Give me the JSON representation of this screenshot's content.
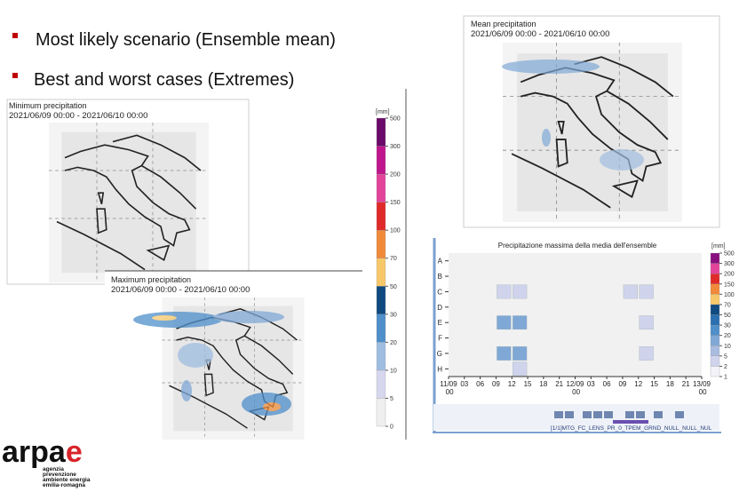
{
  "bullets": [
    "Most likely scenario (Ensemble mean)",
    "Best and worst cases (Extremes)"
  ],
  "panels": {
    "min": {
      "title": "Minimum precipitation",
      "subtitle": "2021/06/09 00:00 - 2021/06/10 00:00"
    },
    "max": {
      "title": "Maximum precipitation",
      "subtitle": "2021/06/09 00:00 - 2021/06/10 00:00"
    },
    "mean": {
      "title": "Mean precipitation",
      "subtitle": "2021/06/09 00:00 - 2021/06/10 00:00"
    }
  },
  "map_colorbar": {
    "unit": "[mm]",
    "ticks": [
      0,
      5,
      10,
      20,
      30,
      50,
      70,
      100,
      150,
      200,
      300,
      500
    ],
    "colors": [
      "#efefef",
      "#d6d6ee",
      "#9fbde0",
      "#4f8fca",
      "#0f4a80",
      "#f7c86a",
      "#f08a3a",
      "#e02a2a",
      "#e2449a",
      "#c0168c",
      "#6a0a6a"
    ]
  },
  "chart_data": {
    "type": "heatmap",
    "title": "Precipitazione massima della media dell'ensemble",
    "x": [
      "11/09 00",
      "03",
      "06",
      "09",
      "12",
      "15",
      "18",
      "21",
      "12/09 00",
      "03",
      "06",
      "09",
      "12",
      "15",
      "18",
      "21",
      "13/09 00"
    ],
    "categories": [
      "A",
      "B",
      "C",
      "D",
      "E",
      "F",
      "G",
      "H"
    ],
    "values": [
      [
        null,
        null,
        null,
        null,
        null,
        null,
        null,
        null,
        null,
        null,
        null,
        null,
        null,
        null,
        null,
        null
      ],
      [
        null,
        null,
        null,
        null,
        null,
        null,
        null,
        null,
        null,
        null,
        null,
        null,
        null,
        null,
        null,
        null
      ],
      [
        null,
        null,
        null,
        3,
        3,
        null,
        null,
        null,
        null,
        null,
        null,
        3,
        3,
        null,
        null,
        null
      ],
      [
        null,
        null,
        null,
        null,
        null,
        null,
        null,
        null,
        null,
        null,
        null,
        null,
        null,
        null,
        null,
        null
      ],
      [
        null,
        null,
        null,
        15,
        15,
        null,
        null,
        null,
        null,
        null,
        null,
        null,
        3,
        null,
        null,
        null
      ],
      [
        null,
        null,
        null,
        null,
        null,
        null,
        null,
        null,
        null,
        null,
        null,
        null,
        null,
        null,
        null,
        null
      ],
      [
        null,
        null,
        null,
        15,
        15,
        null,
        null,
        null,
        null,
        null,
        null,
        null,
        3,
        null,
        null,
        null
      ],
      [
        null,
        null,
        null,
        null,
        3,
        null,
        null,
        null,
        null,
        null,
        null,
        null,
        null,
        null,
        null,
        null
      ]
    ],
    "colorbar": {
      "unit": "[mm]",
      "ticks": [
        1,
        2,
        5,
        10,
        20,
        30,
        50,
        70,
        100,
        150,
        200,
        300,
        500
      ],
      "colors": [
        "#f2f2f8",
        "#cfd3ec",
        "#aabbe0",
        "#7fa8d6",
        "#4f8fca",
        "#2a6fb0",
        "#0f4a80",
        "#f7c86a",
        "#f08a3a",
        "#e02a2a",
        "#e2449a",
        "#8a0f7e"
      ]
    }
  },
  "controls": {
    "label": "[1/1]MTG_FC_LENS_PR_0_TPEM_GRND_NULL_NULL_NUL"
  },
  "logo": {
    "name": "arpae",
    "lines": [
      "agenzia",
      "prevenzione",
      "ambiente energia",
      "emilia-romagna"
    ]
  }
}
